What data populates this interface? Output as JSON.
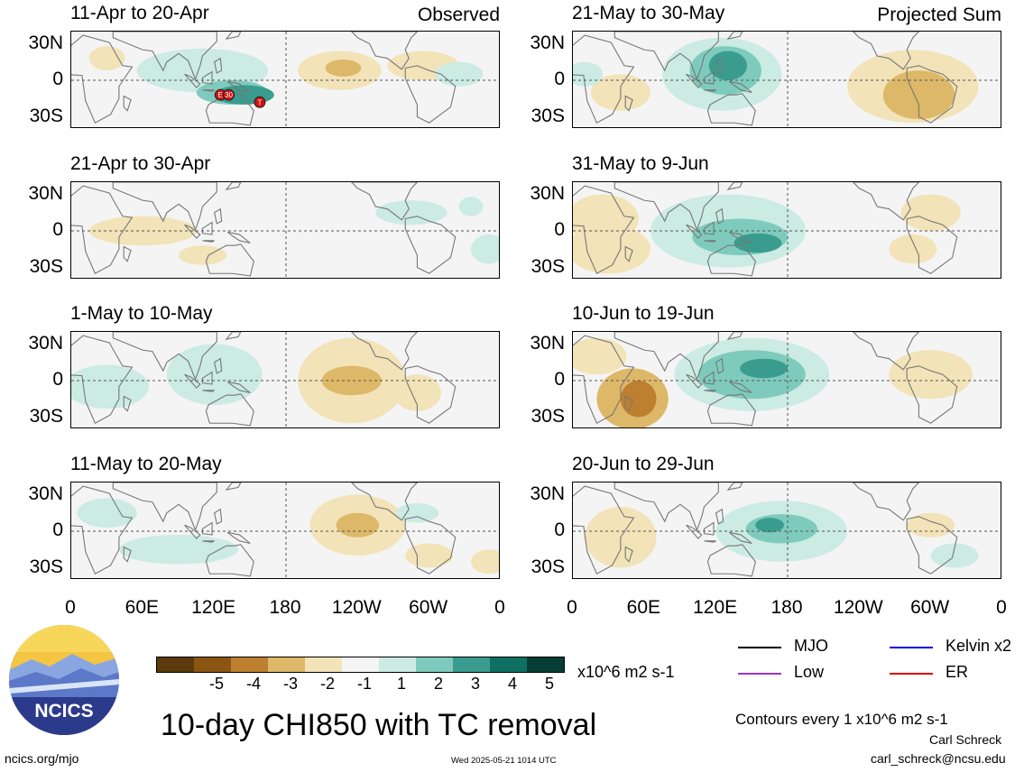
{
  "panels": [
    {
      "title": "11-Apr to 20-Apr",
      "corner": "Observed",
      "col": 0,
      "row": 0,
      "fields": [
        {
          "lon": 110,
          "lat": 8,
          "rx": 55,
          "ry": 18,
          "v": 1.5
        },
        {
          "lon": 135,
          "lat": -10,
          "rx": 30,
          "ry": 10,
          "v": 2.5
        },
        {
          "lon": 145,
          "lat": -12,
          "rx": 25,
          "ry": 8,
          "v": 3.5
        },
        {
          "lon": 225,
          "lat": 8,
          "rx": 35,
          "ry": 16,
          "v": -1.5
        },
        {
          "lon": 228,
          "lat": 10,
          "rx": 15,
          "ry": 7,
          "v": -2.5
        },
        {
          "lon": 295,
          "lat": 12,
          "rx": 30,
          "ry": 12,
          "v": -1.5
        },
        {
          "lon": 30,
          "lat": 18,
          "rx": 15,
          "ry": 10,
          "v": -1.5
        },
        {
          "lon": 325,
          "lat": 5,
          "rx": 20,
          "ry": 10,
          "v": 1.5
        }
      ]
    },
    {
      "title": "21-May to 30-May",
      "corner": "Projected Sum",
      "col": 1,
      "row": 0,
      "fields": [
        {
          "lon": 125,
          "lat": 5,
          "rx": 50,
          "ry": 30,
          "v": 1.5
        },
        {
          "lon": 128,
          "lat": 8,
          "rx": 30,
          "ry": 20,
          "v": 2.5
        },
        {
          "lon": 130,
          "lat": 12,
          "rx": 16,
          "ry": 12,
          "v": 3.5
        },
        {
          "lon": 285,
          "lat": -5,
          "rx": 55,
          "ry": 30,
          "v": -1.5
        },
        {
          "lon": 290,
          "lat": -12,
          "rx": 30,
          "ry": 20,
          "v": -2.5
        },
        {
          "lon": 40,
          "lat": -10,
          "rx": 25,
          "ry": 15,
          "v": -1.5
        },
        {
          "lon": 10,
          "lat": 5,
          "rx": 15,
          "ry": 10,
          "v": 1.5
        }
      ]
    },
    {
      "title": "21-Apr to 30-Apr",
      "corner": "",
      "col": 0,
      "row": 1,
      "fields": [
        {
          "lon": 60,
          "lat": 0,
          "rx": 45,
          "ry": 12,
          "v": -1.5
        },
        {
          "lon": 110,
          "lat": -20,
          "rx": 20,
          "ry": 8,
          "v": -1.5
        },
        {
          "lon": 285,
          "lat": 15,
          "rx": 30,
          "ry": 10,
          "v": 1.5
        },
        {
          "lon": 350,
          "lat": -15,
          "rx": 15,
          "ry": 12,
          "v": 1.5
        },
        {
          "lon": 335,
          "lat": 20,
          "rx": 10,
          "ry": 8,
          "v": 1.5
        }
      ]
    },
    {
      "title": "31-May to 9-Jun",
      "corner": "",
      "col": 1,
      "row": 1,
      "fields": [
        {
          "lon": 25,
          "lat": 10,
          "rx": 30,
          "ry": 20,
          "v": -1.5
        },
        {
          "lon": 30,
          "lat": -15,
          "rx": 35,
          "ry": 20,
          "v": -1.5
        },
        {
          "lon": 130,
          "lat": 0,
          "rx": 65,
          "ry": 30,
          "v": 1.5
        },
        {
          "lon": 140,
          "lat": -5,
          "rx": 40,
          "ry": 15,
          "v": 2.5
        },
        {
          "lon": 155,
          "lat": -10,
          "rx": 20,
          "ry": 8,
          "v": 3.5
        },
        {
          "lon": 300,
          "lat": 15,
          "rx": 25,
          "ry": 15,
          "v": -1.5
        },
        {
          "lon": 285,
          "lat": -15,
          "rx": 20,
          "ry": 12,
          "v": -1.5
        }
      ]
    },
    {
      "title": "1-May to 10-May",
      "corner": "",
      "col": 0,
      "row": 2,
      "fields": [
        {
          "lon": 30,
          "lat": -5,
          "rx": 35,
          "ry": 18,
          "v": 1.5
        },
        {
          "lon": 120,
          "lat": 5,
          "rx": 40,
          "ry": 25,
          "v": 1.5
        },
        {
          "lon": 235,
          "lat": 0,
          "rx": 45,
          "ry": 35,
          "v": -1.5
        },
        {
          "lon": 235,
          "lat": 0,
          "rx": 25,
          "ry": 12,
          "v": -2.5
        },
        {
          "lon": 290,
          "lat": -10,
          "rx": 20,
          "ry": 15,
          "v": -1.5
        }
      ]
    },
    {
      "title": "10-Jun to 19-Jun",
      "corner": "",
      "col": 1,
      "row": 2,
      "fields": [
        {
          "lon": 20,
          "lat": 20,
          "rx": 25,
          "ry": 15,
          "v": -1.5
        },
        {
          "lon": 50,
          "lat": -15,
          "rx": 30,
          "ry": 25,
          "v": -2.5
        },
        {
          "lon": 55,
          "lat": -15,
          "rx": 15,
          "ry": 15,
          "v": -3.5
        },
        {
          "lon": 150,
          "lat": 5,
          "rx": 65,
          "ry": 30,
          "v": 1.5
        },
        {
          "lon": 150,
          "lat": 5,
          "rx": 45,
          "ry": 20,
          "v": 2.5
        },
        {
          "lon": 160,
          "lat": 10,
          "rx": 20,
          "ry": 8,
          "v": 3.5
        },
        {
          "lon": 300,
          "lat": 5,
          "rx": 35,
          "ry": 20,
          "v": -1.5
        }
      ]
    },
    {
      "title": "11-May to 20-May",
      "corner": "",
      "col": 0,
      "row": 3,
      "fields": [
        {
          "lon": 30,
          "lat": 15,
          "rx": 25,
          "ry": 12,
          "v": 1.5
        },
        {
          "lon": 90,
          "lat": -15,
          "rx": 50,
          "ry": 12,
          "v": 1.5
        },
        {
          "lon": 240,
          "lat": 5,
          "rx": 40,
          "ry": 25,
          "v": -1.5
        },
        {
          "lon": 240,
          "lat": 5,
          "rx": 18,
          "ry": 10,
          "v": -2.5
        },
        {
          "lon": 300,
          "lat": -20,
          "rx": 20,
          "ry": 10,
          "v": -1.5
        },
        {
          "lon": 350,
          "lat": -25,
          "rx": 15,
          "ry": 10,
          "v": -1.5
        },
        {
          "lon": 290,
          "lat": 15,
          "rx": 18,
          "ry": 8,
          "v": 1.5
        }
      ]
    },
    {
      "title": "20-Jun to 29-Jun",
      "corner": "",
      "col": 1,
      "row": 3,
      "fields": [
        {
          "lon": 40,
          "lat": -5,
          "rx": 30,
          "ry": 25,
          "v": -1.5
        },
        {
          "lon": 175,
          "lat": 0,
          "rx": 55,
          "ry": 25,
          "v": 1.5
        },
        {
          "lon": 175,
          "lat": 2,
          "rx": 30,
          "ry": 12,
          "v": 2.5
        },
        {
          "lon": 165,
          "lat": 5,
          "rx": 12,
          "ry": 6,
          "v": 3.5
        },
        {
          "lon": 300,
          "lat": 5,
          "rx": 20,
          "ry": 10,
          "v": -1.5
        },
        {
          "lon": 320,
          "lat": -20,
          "rx": 20,
          "ry": 10,
          "v": 1.5
        }
      ]
    }
  ],
  "axes": {
    "lat_labels": [
      "30N",
      "0",
      "30S"
    ],
    "lon_labels": [
      "0",
      "60E",
      "120E",
      "180",
      "120W",
      "60W",
      "0"
    ]
  },
  "colorbar": {
    "colors": [
      "#5b3a0e",
      "#8c5512",
      "#bd8030",
      "#ddb868",
      "#f2e3b8",
      "#f5f5f5",
      "#cbebe3",
      "#7ecbbd",
      "#3a9c8f",
      "#0e6f62",
      "#063d34"
    ],
    "labels": [
      "-5",
      "-4",
      "-3",
      "-2",
      "-1",
      "1",
      "2",
      "3",
      "4",
      "5"
    ],
    "units": "x10^6 m2 s-1"
  },
  "title": "10-day CHI850 with TC removal",
  "legend": [
    {
      "label": "MJO",
      "color": "#000000"
    },
    {
      "label": "Low",
      "color": "#9933cc"
    },
    {
      "label": "Kelvin x2",
      "color": "#0000dd"
    },
    {
      "label": "ER",
      "color": "#dd0000"
    }
  ],
  "contours_note": "Contours every 1 x10^6 m2 s-1",
  "author": "Carl Schreck",
  "email": "carl_schreck@ncsu.edu",
  "website": "ncics.org/mjo",
  "timestamp": "Wed 2025-05-21 1014 UTC",
  "logo_text": "NCICS",
  "tc_markers": [
    {
      "label": "E",
      "lon": 125,
      "lat": -12
    },
    {
      "label": "30",
      "lon": 132,
      "lat": -12
    },
    {
      "label": "T",
      "lon": 158,
      "lat": -18
    }
  ],
  "chart_data": {
    "type": "heatmap",
    "title": "10-day CHI850 with TC removal",
    "xlabel": "",
    "ylabel": "",
    "x_ticks": [
      "0",
      "60E",
      "120E",
      "180",
      "120W",
      "60W",
      "0"
    ],
    "y_ticks": [
      "30N",
      "0",
      "30S"
    ],
    "xlim": [
      0,
      360
    ],
    "ylim": [
      -40,
      40
    ],
    "color_levels": [
      -5,
      -4,
      -3,
      -2,
      -1,
      1,
      2,
      3,
      4,
      5
    ],
    "units": "x10^6 m2 s-1",
    "panels": [
      "11-Apr to 20-Apr",
      "21-May to 30-May",
      "21-Apr to 30-Apr",
      "31-May to 9-Jun",
      "1-May to 10-May",
      "10-Jun to 19-Jun",
      "11-May to 20-May",
      "20-Jun to 29-Jun"
    ]
  }
}
